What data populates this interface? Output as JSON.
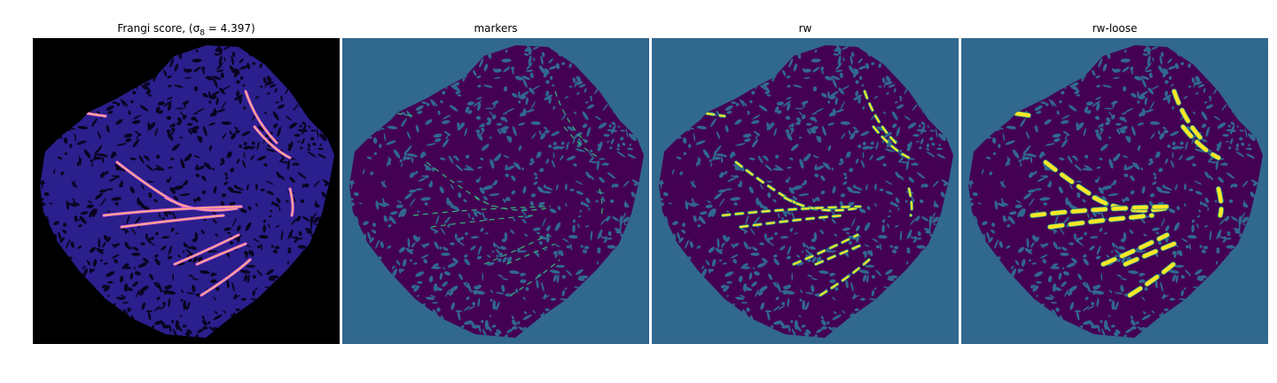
{
  "figure": {
    "panels": [
      {
        "title": "Frangi score, (σ",
        "title_sub": "8",
        "title_tail": " = 4.397)",
        "colormap": "magma",
        "background_color": "#000000",
        "tissue_color": "#2a1f8c",
        "vessel_color": "#e866d8",
        "vessel_core_color": "#ffc070"
      },
      {
        "title": "markers",
        "colormap": "viridis",
        "background_color": "#31688e",
        "tissue_color": "#440154",
        "vessel_color": "#35b779"
      },
      {
        "title": "rw",
        "colormap": "viridis",
        "background_color": "#31688e",
        "tissue_color": "#440154",
        "vessel_color": "#fde725"
      },
      {
        "title": "rw-loose",
        "colormap": "viridis",
        "background_color": "#31688e",
        "tissue_color": "#440154",
        "vessel_color": "#fde725"
      }
    ]
  }
}
